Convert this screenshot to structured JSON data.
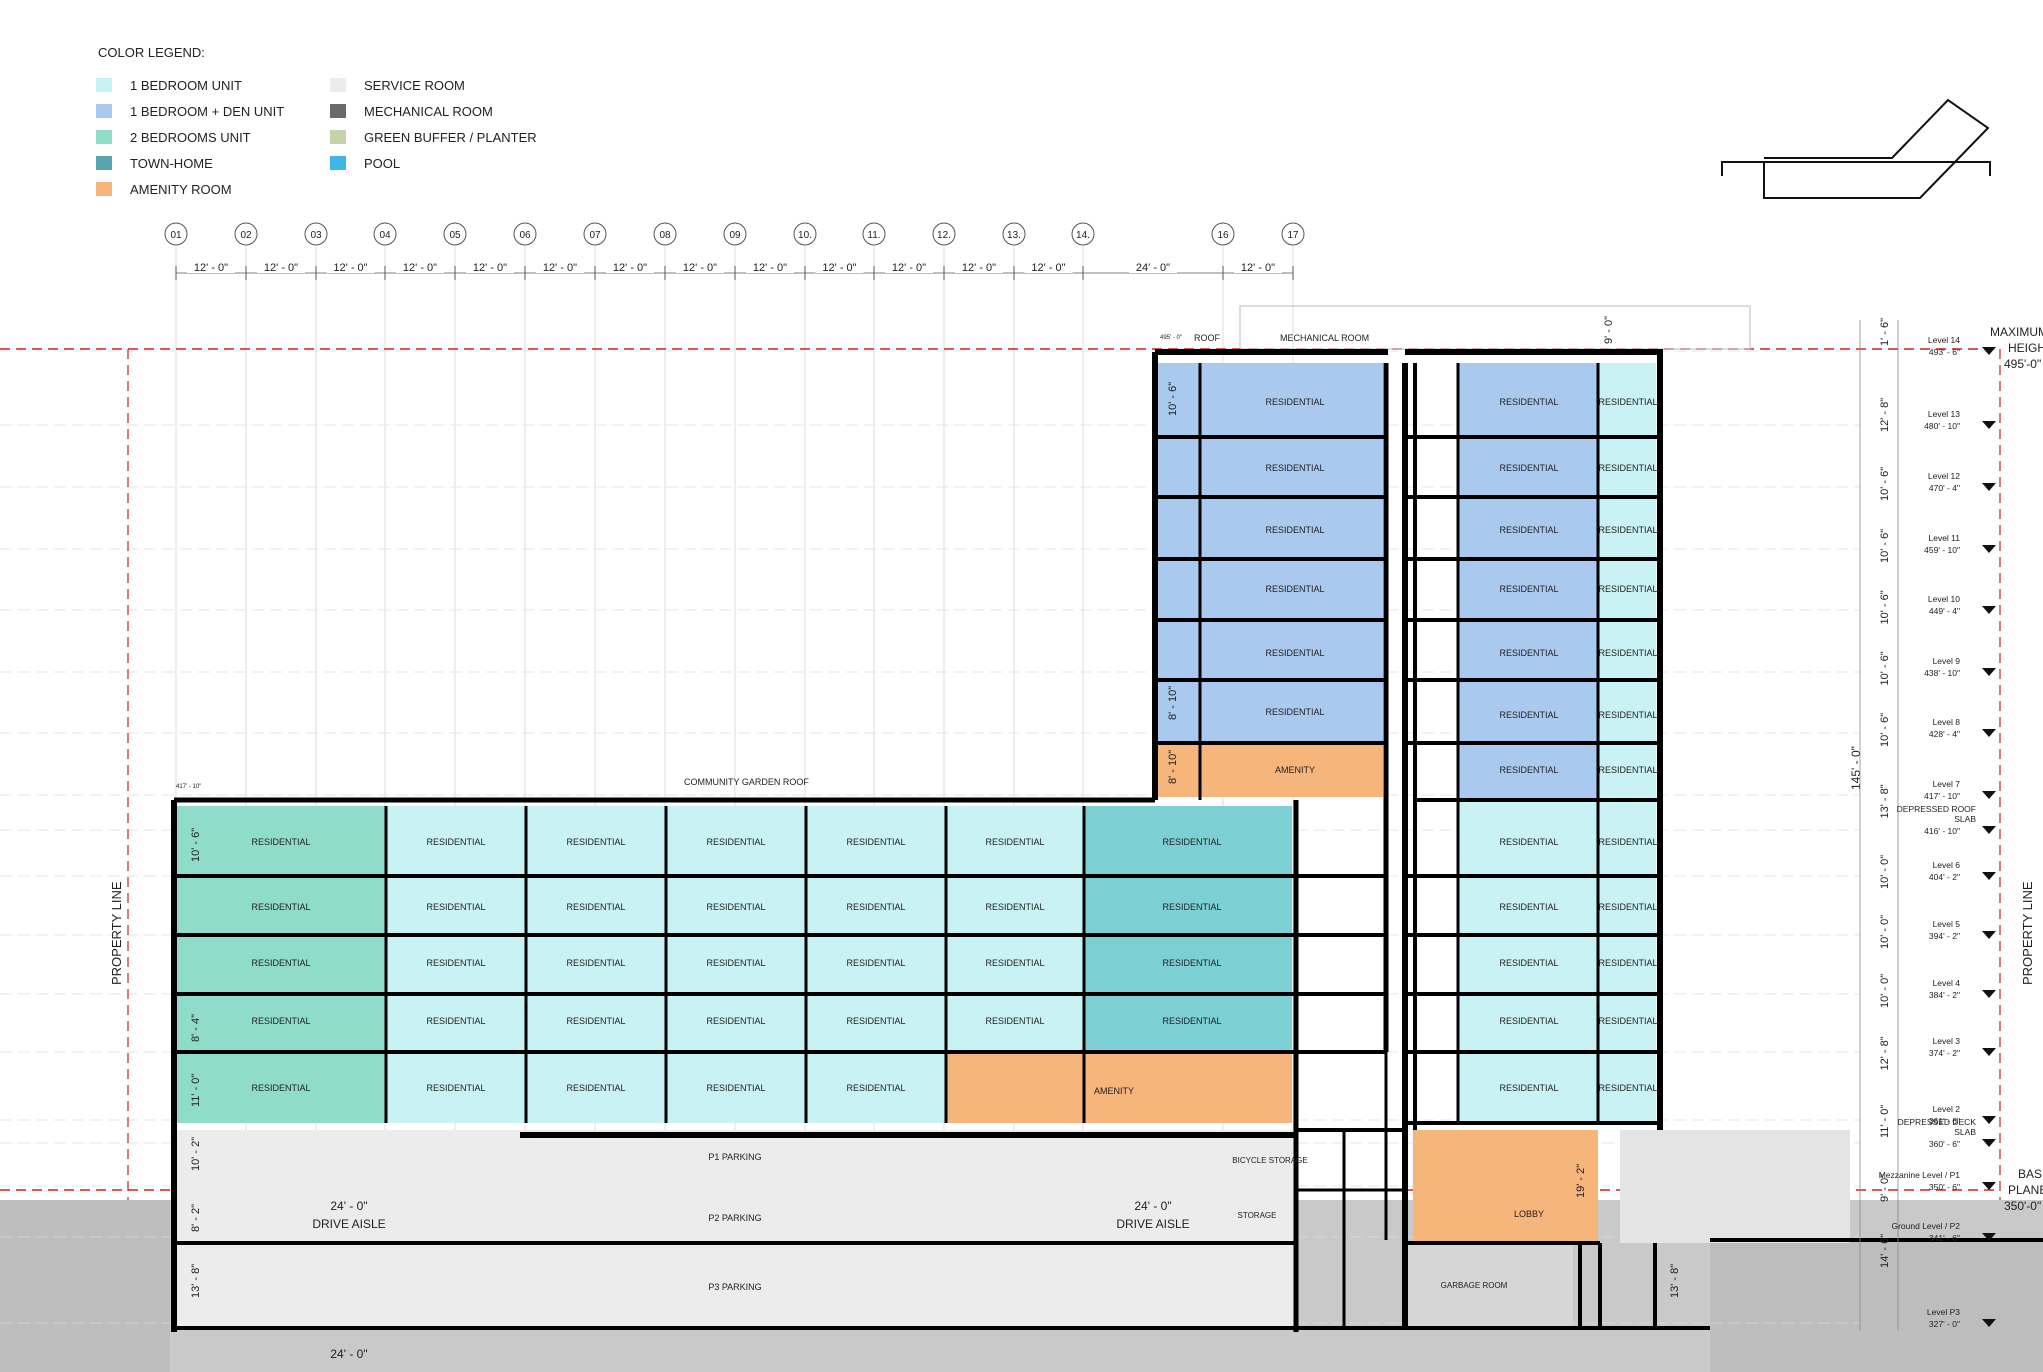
{
  "legend": {
    "title": "COLOR LEGEND:",
    "items": [
      {
        "label": "1 BEDROOM UNIT",
        "color": "#c8f2f4"
      },
      {
        "label": "1 BEDROOM + DEN UNIT",
        "color": "#a9c9ef"
      },
      {
        "label": "2 BEDROOMS UNIT",
        "color": "#8fdccb"
      },
      {
        "label": "TOWN-HOME",
        "color": "#5aa3b0"
      },
      {
        "label": "AMENITY  ROOM",
        "color": "#f6b57a"
      },
      {
        "label": "SERVICE ROOM",
        "color": "#ececec"
      },
      {
        "label": "MECHANICAL  ROOM",
        "color": "#6a6a6a"
      },
      {
        "label": "GREEN BUFFER / PLANTER",
        "color": "#c5d3a8"
      },
      {
        "label": "POOL",
        "color": "#3fb6ea"
      }
    ]
  },
  "grid": {
    "labels": [
      "01",
      "02",
      "03",
      "04",
      "05",
      "06",
      "07",
      "08",
      "09",
      "10.",
      "11.",
      "12.",
      "13.",
      "14.",
      "16",
      "17"
    ],
    "spacings": [
      "12' - 0\"",
      "12' - 0\"",
      "12' - 0\"",
      "12' - 0\"",
      "12' - 0\"",
      "12' - 0\"",
      "12' - 0\"",
      "12' - 0\"",
      "12' - 0\"",
      "12' - 0\"",
      "12' - 0\"",
      "12' - 0\"",
      "12' - 0\"",
      "24' - 0\"",
      "12' - 0\""
    ]
  },
  "annotations": {
    "roof": "ROOF",
    "roof_elev": "495' - 0\"",
    "mechanical": "MECHANICAL ROOM",
    "community_roof": "COMMUNITY GARDEN ROOF",
    "community_elev": "417' - 10\"",
    "property_line": "PROPERTY LINE",
    "residential": "RESIDENTIAL",
    "amenity": "AMENITY",
    "lobby": "LOBBY",
    "garbage": "GARBAGE ROOM",
    "storage": "STORAGE",
    "bicycle": "BICYCLE STORAGE",
    "p1": "P1 PARKING",
    "p2": "P2 PARKING",
    "p3": "P3 PARKING",
    "drive_dim": "24' - 0\"",
    "drive_aisle": "DRIVE AISLE",
    "max_height": [
      "MAXIMUM",
      "HEIGHT",
      "495'-0\""
    ],
    "base_plane": [
      "BASE",
      "PLANE",
      "350'-0\""
    ],
    "total_height": "145' - 0\"",
    "mech_height": "9' - 0\"",
    "lobby_height": "19' - 2\"",
    "tower_floor": "10' - 6\"",
    "tower_8_10": "8' - 10\""
  },
  "left_dims": [
    "10' - 6\"",
    "8' - 4\"",
    "11' - 0\"",
    "10' - 2\"",
    "8' - 2\"",
    "13' - 8\""
  ],
  "dims_right": [
    "1' - 6\"",
    "12' - 8\"",
    "10' - 6\"",
    "10' - 6\"",
    "10' - 6\"",
    "10' - 6\"",
    "10' - 6\"",
    "13' - 8\"",
    "10' - 0\"",
    "10' - 0\"",
    "10' - 0\"",
    "12' - 8\"",
    "11' - 0\"",
    "9' - 0\"",
    "14' - 6\""
  ],
  "levels": [
    {
      "name": "Level 14",
      "elev": "493' - 6\""
    },
    {
      "name": "Level 13",
      "elev": "480' - 10\""
    },
    {
      "name": "Level 12",
      "elev": "470' - 4\""
    },
    {
      "name": "Level 11",
      "elev": "459' - 10\""
    },
    {
      "name": "Level 10",
      "elev": "449' - 4\""
    },
    {
      "name": "Level 9",
      "elev": "438' - 10\""
    },
    {
      "name": "Level 8",
      "elev": "428' - 4\""
    },
    {
      "name": "Level 7",
      "elev": "417' - 10\""
    },
    {
      "name": "DEPRESSED ROOF SLAB",
      "elev": "416' - 10\""
    },
    {
      "name": "Level 6",
      "elev": "404' - 2\""
    },
    {
      "name": "Level 5",
      "elev": "394' - 2\""
    },
    {
      "name": "Level 4",
      "elev": "384' - 2\""
    },
    {
      "name": "Level 3",
      "elev": "374' - 2\""
    },
    {
      "name": "Level 2",
      "elev": "361' - 6\""
    },
    {
      "name": "DEPRESSED DECK SLAB",
      "elev": "360' - 6\""
    },
    {
      "name": "Mezzanine Level / P1",
      "elev": "350' - 6\""
    },
    {
      "name": "Ground Level / P2",
      "elev": "341' - 6\""
    },
    {
      "name": "Level P3",
      "elev": "327' - 0\""
    }
  ]
}
